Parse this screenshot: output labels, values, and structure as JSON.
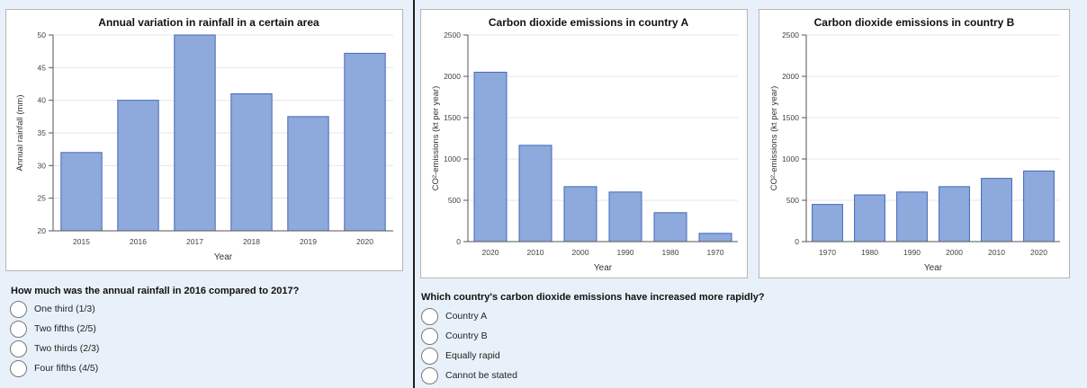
{
  "colors": {
    "bar_fill": "#8ea9dc",
    "bar_stroke": "#4466bb",
    "grid": "#e4e4e4",
    "axis": "#555555"
  },
  "left": {
    "question": "How much was the annual rainfall in 2016 compared to 2017?",
    "options": [
      "One third (1/3)",
      "Two fifths (2/5)",
      "Two thirds (2/3)",
      "Four fifths (4/5)"
    ]
  },
  "right": {
    "question": "Which country's carbon dioxide emissions have increased more rapidly?",
    "options": [
      "Country A",
      "Country B",
      "Equally rapid",
      "Cannot be stated"
    ]
  },
  "chart_data": [
    {
      "type": "bar",
      "title": "Annual variation in rainfall in a certain area",
      "xlabel": "Year",
      "ylabel": "Annual rainfall (mm)",
      "categories": [
        "2015",
        "2016",
        "2017",
        "2018",
        "2019",
        "2020"
      ],
      "values": [
        32,
        40,
        50,
        41,
        37.5,
        47.2
      ],
      "ylim": [
        20,
        50
      ],
      "yticks": [
        20,
        25,
        30,
        35,
        40,
        45,
        50
      ],
      "grid": true
    },
    {
      "type": "bar",
      "title": "Carbon dioxide emissions in country A",
      "xlabel": "Year",
      "ylabel": "CO²-emissions (kt per year)",
      "categories": [
        "2020",
        "2010",
        "2000",
        "1990",
        "1980",
        "1970"
      ],
      "values": [
        2050,
        1165,
        665,
        600,
        350,
        100
      ],
      "ylim": [
        0,
        2500
      ],
      "yticks": [
        0,
        500,
        1000,
        1500,
        2000,
        2500
      ],
      "grid": true
    },
    {
      "type": "bar",
      "title": "Carbon dioxide emissions in country B",
      "xlabel": "Year",
      "ylabel": "CO²-emissions (kt per year)",
      "categories": [
        "1970",
        "1980",
        "1990",
        "2000",
        "2010",
        "2020"
      ],
      "values": [
        450,
        565,
        600,
        665,
        765,
        855
      ],
      "ylim": [
        0,
        2500
      ],
      "yticks": [
        0,
        500,
        1000,
        1500,
        2000,
        2500
      ],
      "grid": true
    }
  ]
}
